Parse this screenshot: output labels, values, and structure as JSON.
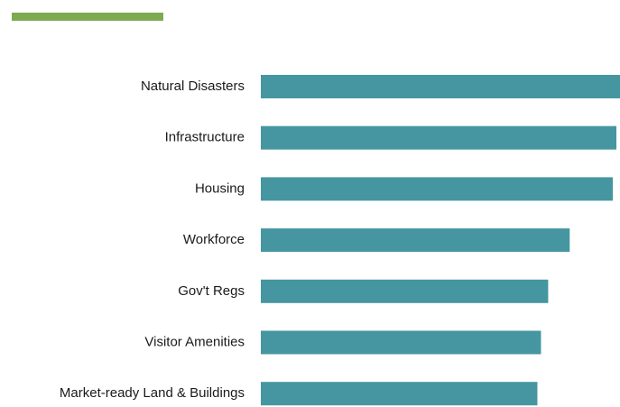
{
  "chart_data": {
    "type": "hbar",
    "categories": [
      "Natural Disasters",
      "Infrastructure",
      "Housing",
      "Workforce",
      "Gov't Regs",
      "Visitor Amenities",
      "Market-ready Land & Buildings"
    ],
    "values": [
      100,
      99,
      98,
      86,
      80,
      78,
      77
    ],
    "color": "#4596a0",
    "xlim": [
      0,
      100
    ]
  }
}
